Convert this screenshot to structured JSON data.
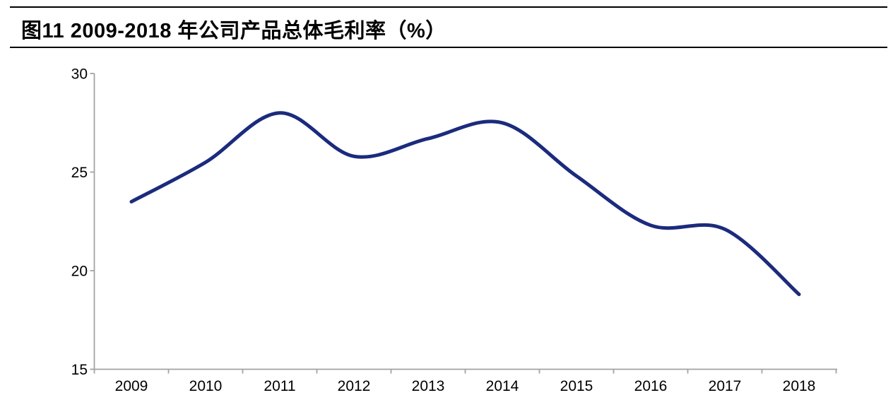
{
  "header": {
    "title": "图11 2009-2018 年公司产品总体毛利率（%）"
  },
  "chart_data": {
    "type": "line",
    "title": "图11 2009-2018 年公司产品总体毛利率（%）",
    "categories": [
      "2009",
      "2010",
      "2011",
      "2012",
      "2013",
      "2014",
      "2015",
      "2016",
      "2017",
      "2018"
    ],
    "values": [
      23.5,
      25.5,
      28.0,
      25.8,
      26.7,
      27.5,
      24.8,
      22.3,
      22.1,
      18.8
    ],
    "series_name": "总体毛利率",
    "xlabel": "",
    "ylabel": "",
    "ylim": [
      15,
      30
    ],
    "yticks": [
      15,
      20,
      25,
      30
    ],
    "grid": false,
    "legend_position": "none",
    "smooth_line": true,
    "line_color": "#1b2b7d",
    "axis_color": "#a3a3a3",
    "tick_label_color": "#000000"
  }
}
